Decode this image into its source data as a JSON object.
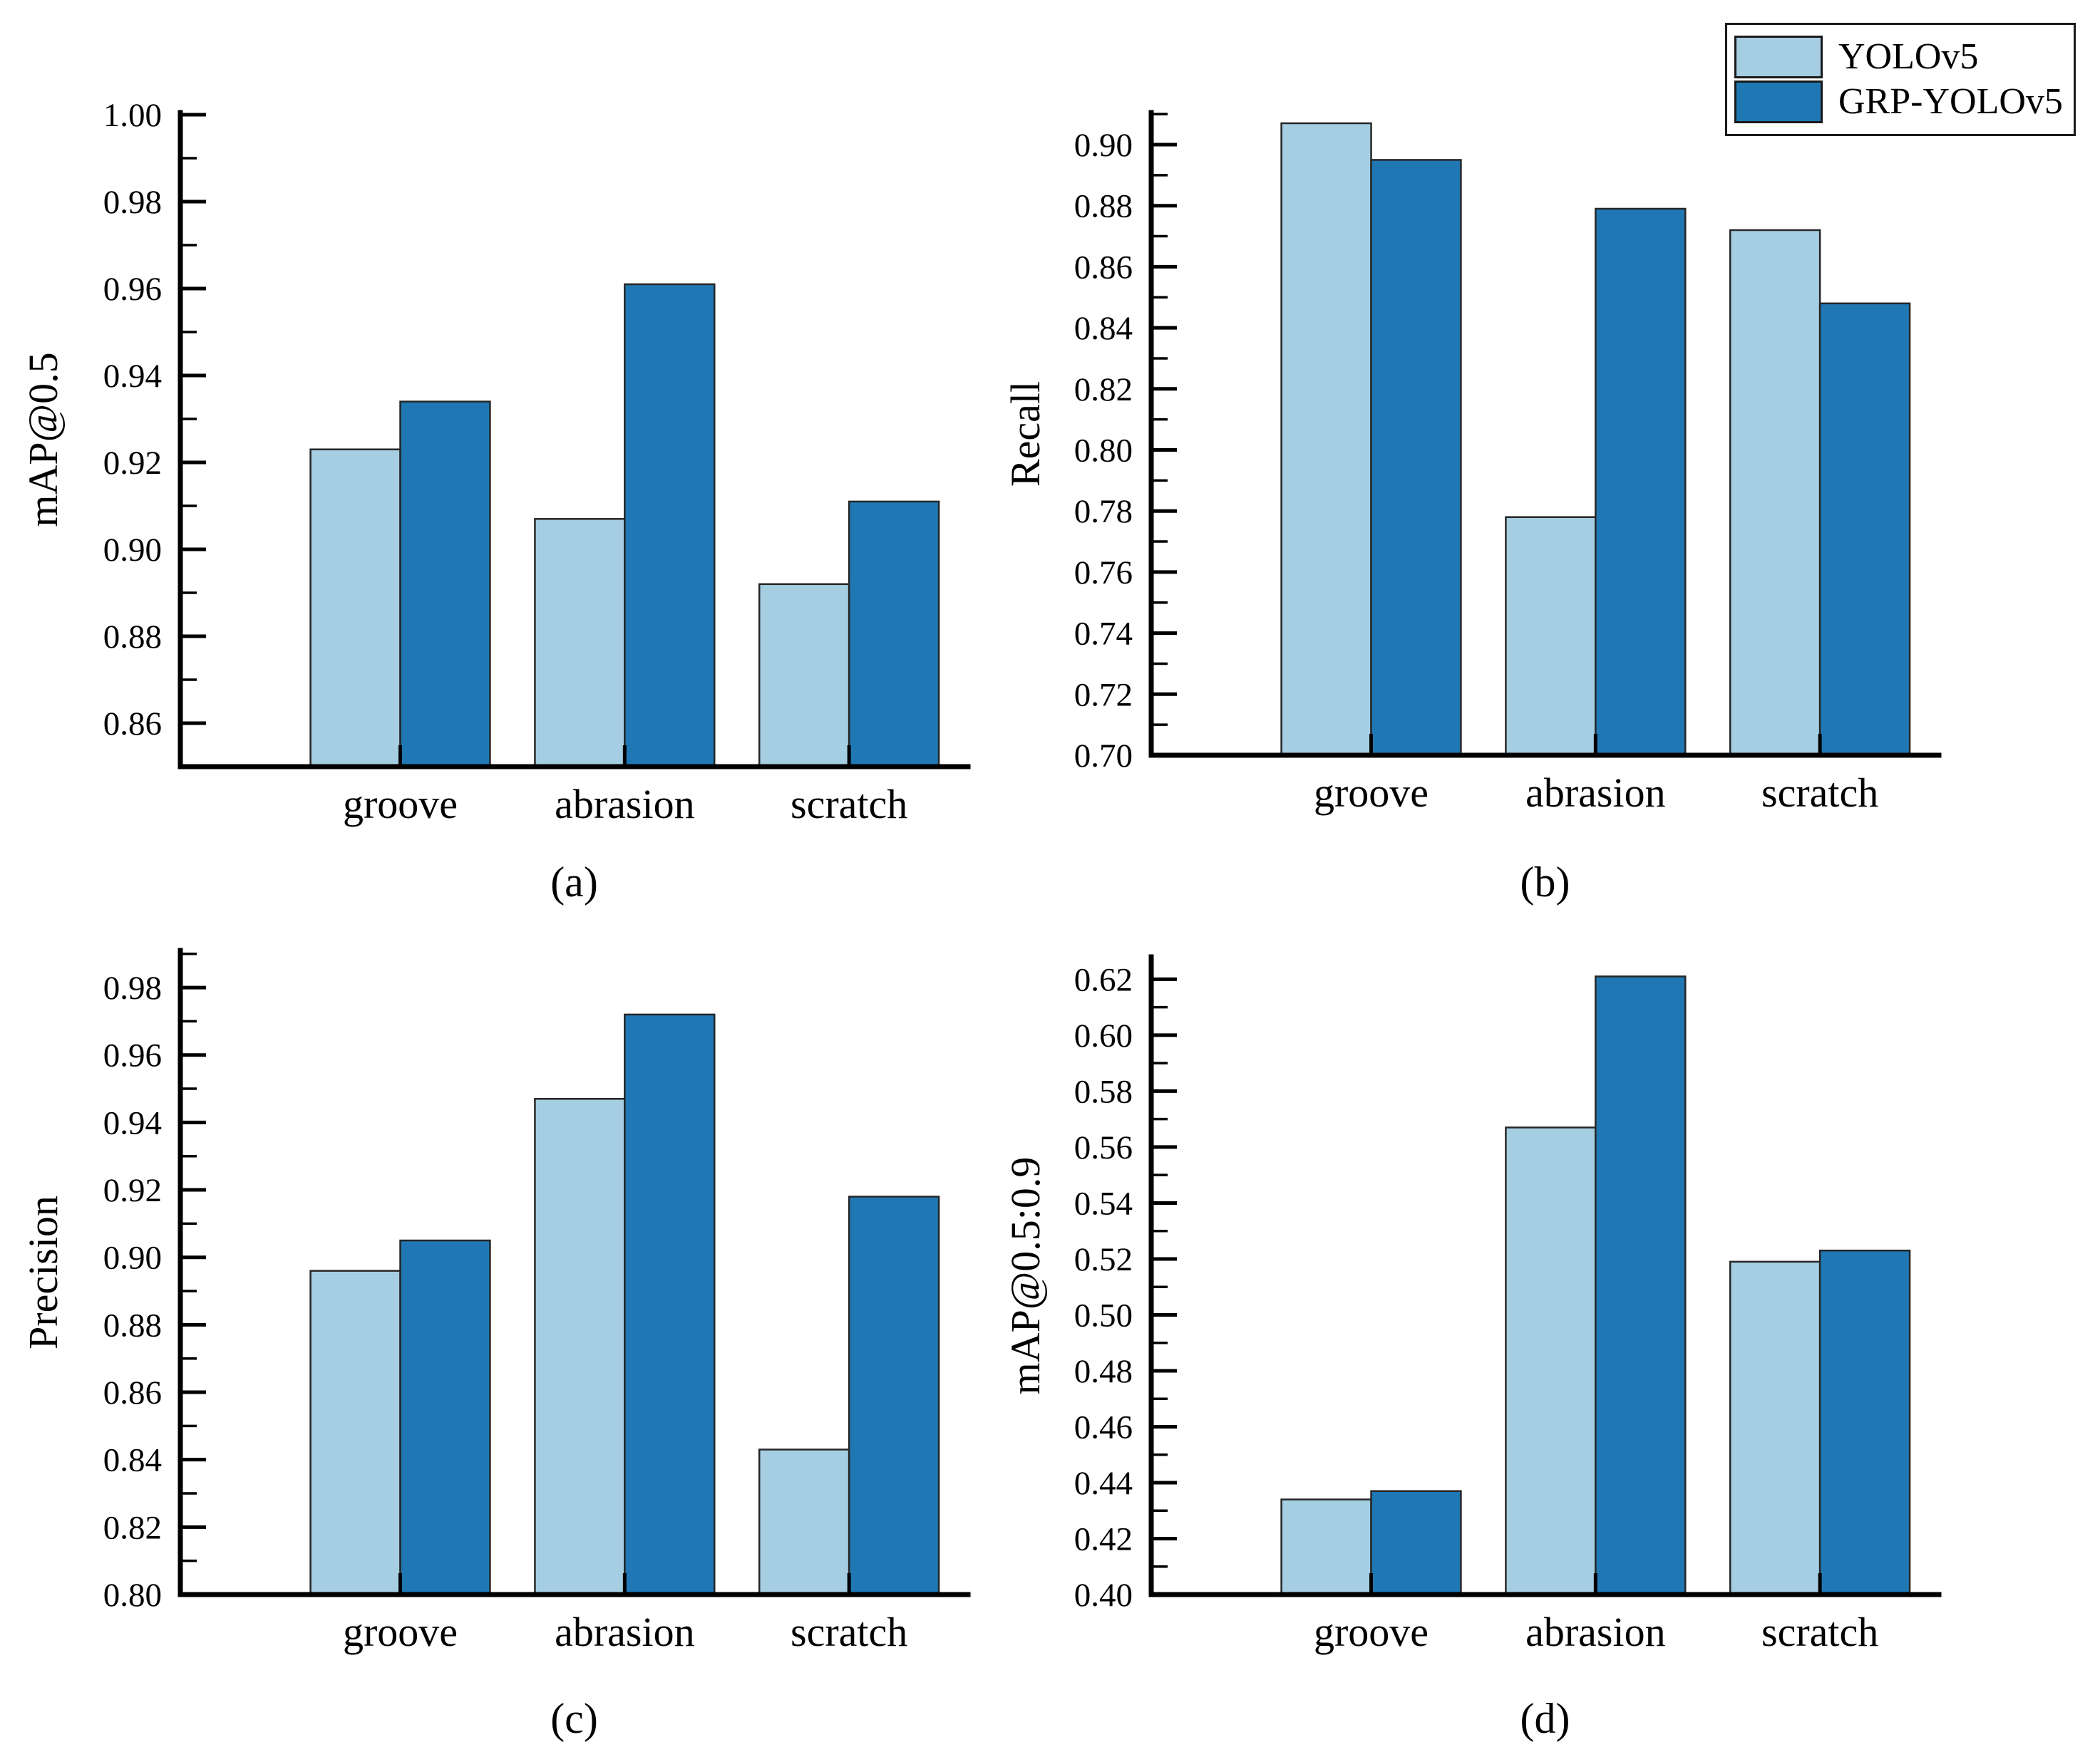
{
  "figure": {
    "background": "#ffffff",
    "axis_color": "#000000",
    "bar_edge_color": "#262626",
    "legend": {
      "position": "top-right",
      "items": [
        {
          "label": "YOLOv5",
          "color": "#a6cee3"
        },
        {
          "label": "GRP-YOLOv5",
          "color": "#1f78b4"
        }
      ]
    }
  },
  "chart_data": [
    {
      "type": "bar",
      "panel": "a",
      "caption": "(a)",
      "title": "",
      "xlabel": "",
      "ylabel": "mAP@0.5",
      "categories": [
        "groove",
        "abrasion",
        "scratch"
      ],
      "series": [
        {
          "name": "YOLOv5",
          "color": "#a6cee3",
          "values": [
            0.923,
            0.907,
            0.892
          ]
        },
        {
          "name": "GRP-YOLOv5",
          "color": "#1f78b4",
          "values": [
            0.934,
            0.961,
            0.911
          ]
        }
      ],
      "ylim": [
        0.85,
        1.0005
      ],
      "ytick_values": [
        0.86,
        0.88,
        0.9,
        0.92,
        0.94,
        0.96,
        0.98,
        1.0
      ],
      "ytick_labels": [
        "0.86",
        "0.88",
        "0.90",
        "0.92",
        "0.94",
        "0.96",
        "0.98",
        "1.00"
      ],
      "minor_tick_step": 0.01,
      "grid": false,
      "legend_position": "shared-figure-top-right"
    },
    {
      "type": "bar",
      "panel": "b",
      "caption": "(b)",
      "title": "",
      "xlabel": "",
      "ylabel": "Recall",
      "categories": [
        "groove",
        "abrasion",
        "scratch"
      ],
      "series": [
        {
          "name": "YOLOv5",
          "color": "#a6cee3",
          "values": [
            0.907,
            0.778,
            0.872
          ]
        },
        {
          "name": "GRP-YOLOv5",
          "color": "#1f78b4",
          "values": [
            0.895,
            0.879,
            0.848
          ]
        }
      ],
      "ylim": [
        0.7,
        0.9105
      ],
      "ytick_values": [
        0.7,
        0.72,
        0.74,
        0.76,
        0.78,
        0.8,
        0.82,
        0.84,
        0.86,
        0.88,
        0.9
      ],
      "ytick_labels": [
        "0.70",
        "0.72",
        "0.74",
        "0.76",
        "0.78",
        "0.80",
        "0.82",
        "0.84",
        "0.86",
        "0.88",
        "0.90"
      ],
      "minor_tick_step": 0.01,
      "grid": false,
      "legend_position": "shared-figure-top-right"
    },
    {
      "type": "bar",
      "panel": "c",
      "caption": "(c)",
      "title": "",
      "xlabel": "",
      "ylabel": "Precision",
      "categories": [
        "groove",
        "abrasion",
        "scratch"
      ],
      "series": [
        {
          "name": "YOLOv5",
          "color": "#a6cee3",
          "values": [
            0.896,
            0.947,
            0.843
          ]
        },
        {
          "name": "GRP-YOLOv5",
          "color": "#1f78b4",
          "values": [
            0.905,
            0.972,
            0.918
          ]
        }
      ],
      "ylim": [
        0.8,
        0.991
      ],
      "ytick_values": [
        0.8,
        0.82,
        0.84,
        0.86,
        0.88,
        0.9,
        0.92,
        0.94,
        0.96,
        0.98
      ],
      "ytick_labels": [
        "0.80",
        "0.82",
        "0.84",
        "0.86",
        "0.88",
        "0.90",
        "0.92",
        "0.94",
        "0.96",
        "0.98"
      ],
      "minor_tick_step": 0.01,
      "grid": false,
      "legend_position": "shared-figure-top-right"
    },
    {
      "type": "bar",
      "panel": "d",
      "caption": "(d)",
      "title": "",
      "xlabel": "",
      "ylabel": "mAP@0.5:0.9",
      "categories": [
        "groove",
        "abrasion",
        "scratch"
      ],
      "series": [
        {
          "name": "YOLOv5",
          "color": "#a6cee3",
          "values": [
            0.434,
            0.567,
            0.519
          ]
        },
        {
          "name": "GRP-YOLOv5",
          "color": "#1f78b4",
          "values": [
            0.437,
            0.621,
            0.523
          ]
        }
      ],
      "ylim": [
        0.4,
        0.628
      ],
      "ytick_values": [
        0.4,
        0.42,
        0.44,
        0.46,
        0.48,
        0.5,
        0.52,
        0.54,
        0.56,
        0.58,
        0.6,
        0.62
      ],
      "ytick_labels": [
        "0.40",
        "0.42",
        "0.44",
        "0.46",
        "0.48",
        "0.50",
        "0.52",
        "0.54",
        "0.56",
        "0.58",
        "0.60",
        "0.62"
      ],
      "minor_tick_step": 0.01,
      "grid": false,
      "legend_position": "shared-figure-top-right"
    }
  ]
}
